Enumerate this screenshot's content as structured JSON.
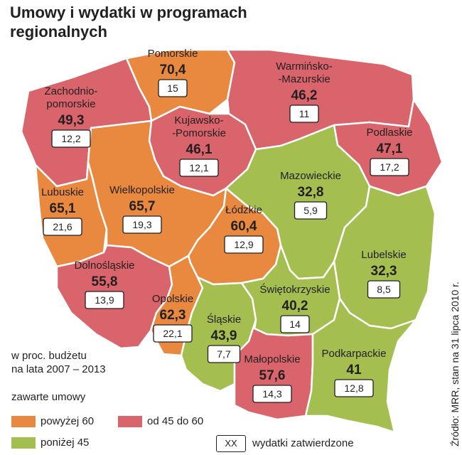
{
  "title": "Umowy i wydatki w programach regionalnych",
  "colors": {
    "above60": "#e8893f",
    "from45to60": "#d9646b",
    "below45": "#a4be4f"
  },
  "chart_data": {
    "type": "map",
    "title": "Umowy i wydatki w programach regionalnych",
    "regions": [
      {
        "name": "Pomorskie",
        "contracts": "70,4",
        "expenses": "15",
        "category": "above60"
      },
      {
        "name": "Zachodnio-\npomorskie",
        "contracts": "49,3",
        "expenses": "12,2",
        "category": "from45to60"
      },
      {
        "name": "Warmińsko-\n-Mazurskie",
        "contracts": "46,2",
        "expenses": "11",
        "category": "from45to60"
      },
      {
        "name": "Kujawsko-\n-Pomorskie",
        "contracts": "46,1",
        "expenses": "12,1",
        "category": "from45to60"
      },
      {
        "name": "Podlaskie",
        "contracts": "47,1",
        "expenses": "17,2",
        "category": "from45to60"
      },
      {
        "name": "Mazowieckie",
        "contracts": "32,8",
        "expenses": "5,9",
        "category": "below45"
      },
      {
        "name": "Lubuskie",
        "contracts": "65,1",
        "expenses": "21,6",
        "category": "above60"
      },
      {
        "name": "Wielkopolskie",
        "contracts": "65,7",
        "expenses": "19,3",
        "category": "above60"
      },
      {
        "name": "Łódzkie",
        "contracts": "60,4",
        "expenses": "12,9",
        "category": "above60"
      },
      {
        "name": "Lubelskie",
        "contracts": "32,3",
        "expenses": "8,5",
        "category": "below45"
      },
      {
        "name": "Dolnośląskie",
        "contracts": "55,8",
        "expenses": "13,9",
        "category": "from45to60"
      },
      {
        "name": "Opolskie",
        "contracts": "62,3",
        "expenses": "22,1",
        "category": "above60"
      },
      {
        "name": "Śląskie",
        "contracts": "43,9",
        "expenses": "7,7",
        "category": "below45"
      },
      {
        "name": "Świętokrzyskie",
        "contracts": "40,2",
        "expenses": "14",
        "category": "below45"
      },
      {
        "name": "Małopolskie",
        "contracts": "57,6",
        "expenses": "14,3",
        "category": "from45to60"
      },
      {
        "name": "Podkarpackie",
        "contracts": "41",
        "expenses": "12,8",
        "category": "below45"
      }
    ]
  },
  "legend": {
    "unit_line1": "w proc. budżetu",
    "unit_line2": "na lata 2007 – 2013",
    "subtitle": "zawarte umowy",
    "above60": "powyżej 60",
    "from45to60": "od 45 do 60",
    "below45": "poniżej 45",
    "xx": "XX",
    "xx_label": "wydatki zatwierdzone"
  },
  "source": "Źródło: MRR, stan na 31 lipca 2010 r."
}
